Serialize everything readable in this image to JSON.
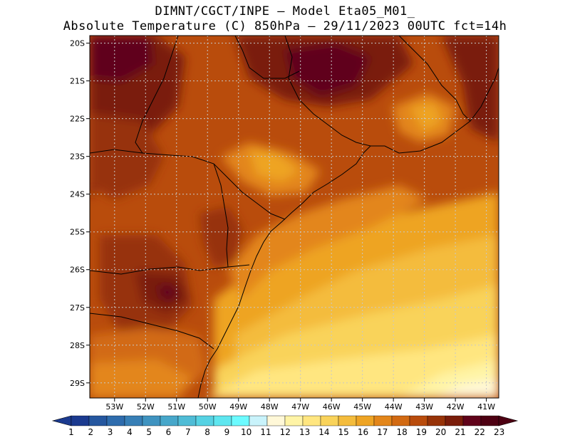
{
  "header": {
    "line1": "DIMNT/CGCT/INPE –  Model Eta05_M01_",
    "line2": "Absolute Temperature (C) 850hPa –  29/11/2023 00UTC fct=14h"
  },
  "map": {
    "lon_range": [
      -53.8,
      -40.6
    ],
    "lat_range": [
      -29.4,
      -19.8
    ],
    "lon_ticks": [
      "53W",
      "52W",
      "51W",
      "50W",
      "49W",
      "48W",
      "47W",
      "46W",
      "45W",
      "44W",
      "43W",
      "42W",
      "41W"
    ],
    "lat_ticks": [
      "20S",
      "21S",
      "22S",
      "23S",
      "24S",
      "25S",
      "26S",
      "27S",
      "28S",
      "29S"
    ]
  },
  "colorbar": {
    "labels": [
      "1",
      "2",
      "3",
      "4",
      "5",
      "6",
      "7",
      "8",
      "9",
      "10",
      "11",
      "12",
      "13",
      "14",
      "15",
      "16",
      "17",
      "18",
      "19",
      "20",
      "21",
      "22",
      "23"
    ],
    "colors": [
      "#1b3a8f",
      "#25579f",
      "#2e6cad",
      "#377fb6",
      "#3f93c0",
      "#47a7ca",
      "#4fbcd6",
      "#56d2e3",
      "#5ee6ef",
      "#6cfbff",
      "#c9f3fb",
      "#fff8d8",
      "#fff4a6",
      "#ffe680",
      "#f9d35a",
      "#f4bc3c",
      "#eea424",
      "#e3861a",
      "#d26a12",
      "#b94c0c",
      "#973308",
      "#7a1d0a",
      "#60021a",
      "#4d0012"
    ],
    "arrow_left": "#1b3a8f",
    "arrow_right": "#4d0012"
  }
}
